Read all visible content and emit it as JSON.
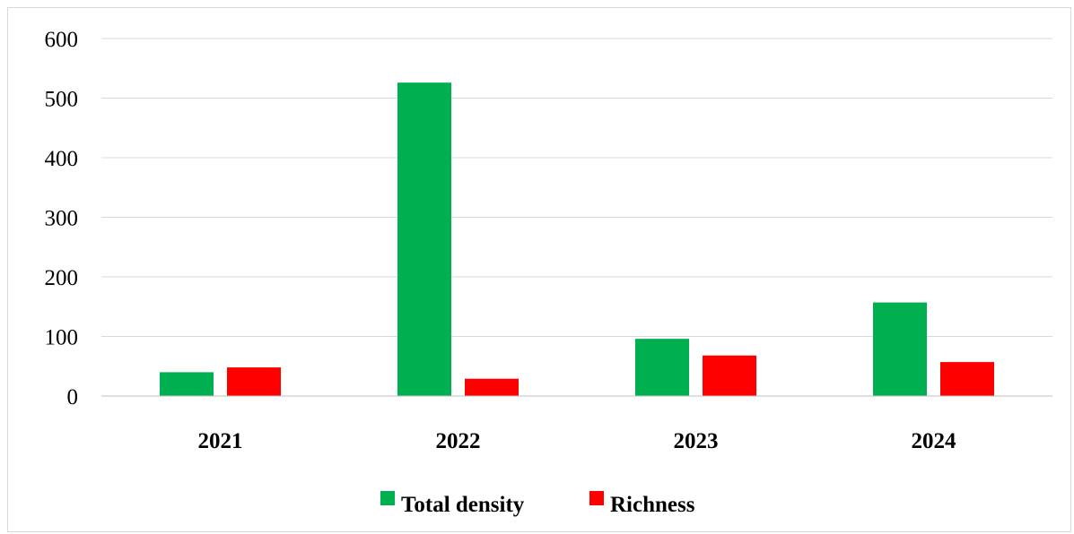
{
  "chart_data": {
    "type": "bar",
    "categories": [
      "2021",
      "2022",
      "2023",
      "2024"
    ],
    "series": [
      {
        "name": "Total density",
        "values": [
          40,
          526,
          96,
          157
        ],
        "color": "#00b050"
      },
      {
        "name": "Richness",
        "values": [
          48,
          29,
          68,
          57
        ],
        "color": "#ff0000"
      }
    ],
    "ylim": [
      0,
      600
    ],
    "yticks": [
      0,
      100,
      200,
      300,
      400,
      500,
      600
    ],
    "grid": true,
    "legend_position": "bottom",
    "title": "",
    "xlabel": "",
    "ylabel": ""
  }
}
